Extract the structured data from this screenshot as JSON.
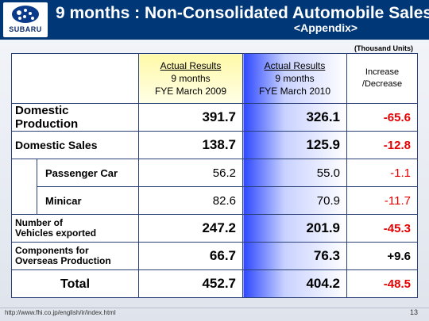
{
  "header": {
    "logo_text": "SUBARU",
    "title": "9 months : Non-Consolidated Automobile Sales",
    "subtitle": "<Appendix>"
  },
  "units_note": "(Thousand Units)",
  "table": {
    "col_2009": {
      "line1": "Actual Results",
      "line2": "9 months",
      "line3": "FYE March 2009"
    },
    "col_2010": {
      "line1": "Actual Results",
      "line2": "9 months",
      "line3": "FYE March 2010"
    },
    "col_diff": {
      "line1": "Increase",
      "line2": "/Decrease"
    },
    "rows": [
      {
        "label_line1": "Domestic",
        "label_line2": "Production",
        "v2009": "391.7",
        "v2010": "326.1",
        "diff": "-65.6"
      },
      {
        "label": "Domestic Sales",
        "v2009": "138.7",
        "v2010": "125.9",
        "diff": "-12.8"
      },
      {
        "label": "Passenger Car",
        "v2009": "56.2",
        "v2010": "55.0",
        "diff": "-1.1"
      },
      {
        "label": "Minicar",
        "v2009": "82.6",
        "v2010": "70.9",
        "diff": "-11.7"
      },
      {
        "label_line1": "Number of",
        "label_line2": "Vehicles exported",
        "v2009": "247.2",
        "v2010": "201.9",
        "diff": "-45.3"
      },
      {
        "label_line1": "Components for",
        "label_line2": "Overseas Production",
        "v2009": "66.7",
        "v2010": "76.3",
        "diff": "+9.6"
      },
      {
        "label": "Total",
        "v2009": "452.7",
        "v2010": "404.2",
        "diff": "-48.5"
      }
    ]
  },
  "footer": {
    "url": "http://www.fhi.co.jp/english/ir/index.html",
    "page_number": "13"
  },
  "colors": {
    "header_bg": "#003777",
    "negative": "#e60000",
    "col_2010_accent": "#2d48ff",
    "col_2009_accent": "#fff9a8"
  }
}
